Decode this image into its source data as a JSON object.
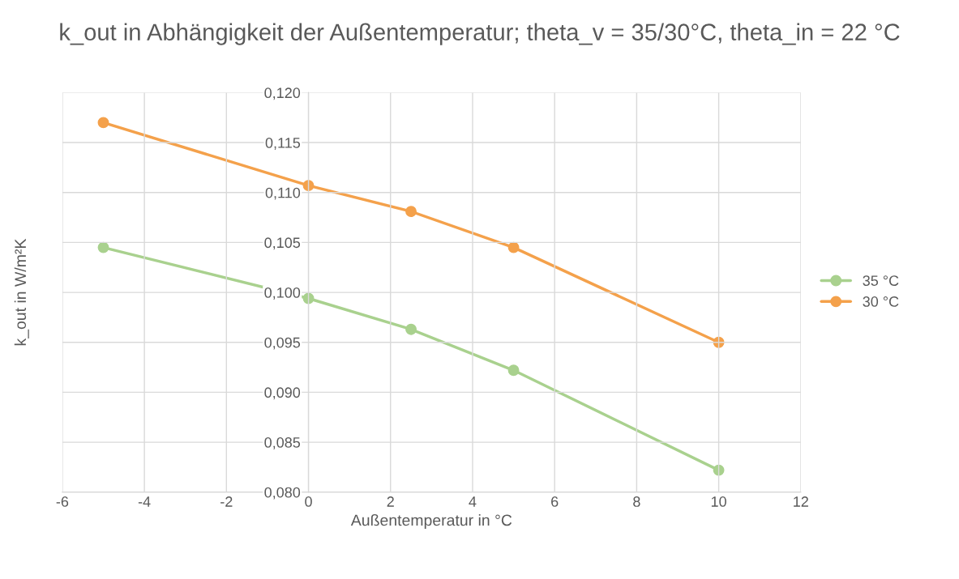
{
  "chart_data": {
    "type": "line",
    "title": "k_out in Abhängigkeit der Außentemperatur; theta_v = 35/30°C, theta_in = 22 °C",
    "xlabel": "Außentemperatur in °C",
    "ylabel": "k_out in W/m²K",
    "x": [
      -5,
      0,
      2.5,
      5,
      10
    ],
    "series": [
      {
        "name": "35 °C",
        "color": "#a9d18e",
        "values": [
          0.1045,
          0.0994,
          0.0963,
          0.0922,
          0.0822
        ]
      },
      {
        "name": "30 °C",
        "color": "#f4a14b",
        "values": [
          0.117,
          0.1107,
          0.1081,
          0.1045,
          0.095
        ]
      }
    ],
    "xlim": [
      -6,
      12
    ],
    "xticks": [
      -6,
      -4,
      -2,
      0,
      2,
      4,
      6,
      8,
      10,
      12
    ],
    "ylim": [
      0.08,
      0.12
    ],
    "yticks": [
      {
        "value": 0.08,
        "label": "0,080"
      },
      {
        "value": 0.085,
        "label": "0,085"
      },
      {
        "value": 0.09,
        "label": "0,090"
      },
      {
        "value": 0.095,
        "label": "0,095"
      },
      {
        "value": 0.1,
        "label": "0,100"
      },
      {
        "value": 0.105,
        "label": "0,105"
      },
      {
        "value": 0.11,
        "label": "0,110"
      },
      {
        "value": 0.115,
        "label": "0,115"
      },
      {
        "value": 0.12,
        "label": "0,120"
      }
    ],
    "grid": true,
    "legend": "right",
    "marker": "circle",
    "line_style": "solid"
  }
}
